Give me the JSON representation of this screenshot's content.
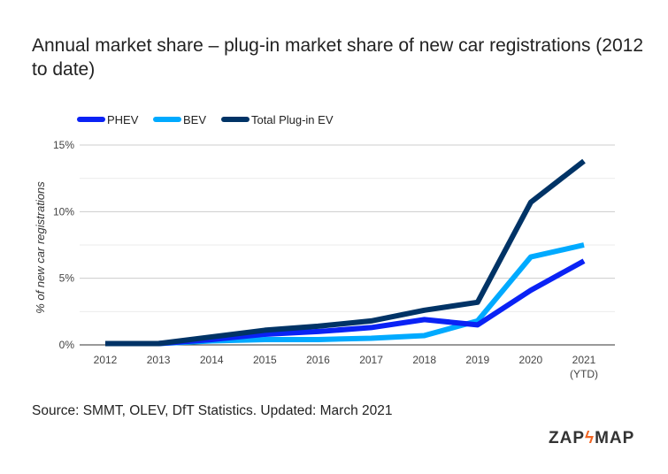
{
  "chart_data": {
    "type": "line",
    "title": "Annual market share – plug-in market share of new car registrations (2012 to date)",
    "ylabel": "% of new car registrations",
    "xlabel": "",
    "categories": [
      "2012",
      "2013",
      "2014",
      "2015",
      "2016",
      "2017",
      "2018",
      "2019",
      "2020",
      "2021"
    ],
    "category_sublabels": {
      "2021": "(YTD)"
    },
    "ylim": [
      0,
      15
    ],
    "yticks": [
      "0%",
      "5%",
      "10%",
      "15%"
    ],
    "grid": true,
    "legend": "top-left",
    "series": [
      {
        "name": "PHEV",
        "color": "#0a22f5",
        "values": [
          0.1,
          0.1,
          0.4,
          0.8,
          1.0,
          1.3,
          1.9,
          1.5,
          4.1,
          6.3
        ]
      },
      {
        "name": "BEV",
        "color": "#00aaff",
        "values": [
          0.1,
          0.1,
          0.3,
          0.4,
          0.4,
          0.5,
          0.7,
          1.8,
          6.6,
          7.5
        ]
      },
      {
        "name": "Total Plug-in EV",
        "color": "#003366",
        "values": [
          0.1,
          0.1,
          0.6,
          1.1,
          1.4,
          1.8,
          2.6,
          3.2,
          10.7,
          13.8
        ]
      }
    ]
  },
  "source": "Source: SMMT, OLEV, DfT Statistics. Updated: March 2021",
  "logo": {
    "left": "ZAP",
    "right": "MAP"
  }
}
